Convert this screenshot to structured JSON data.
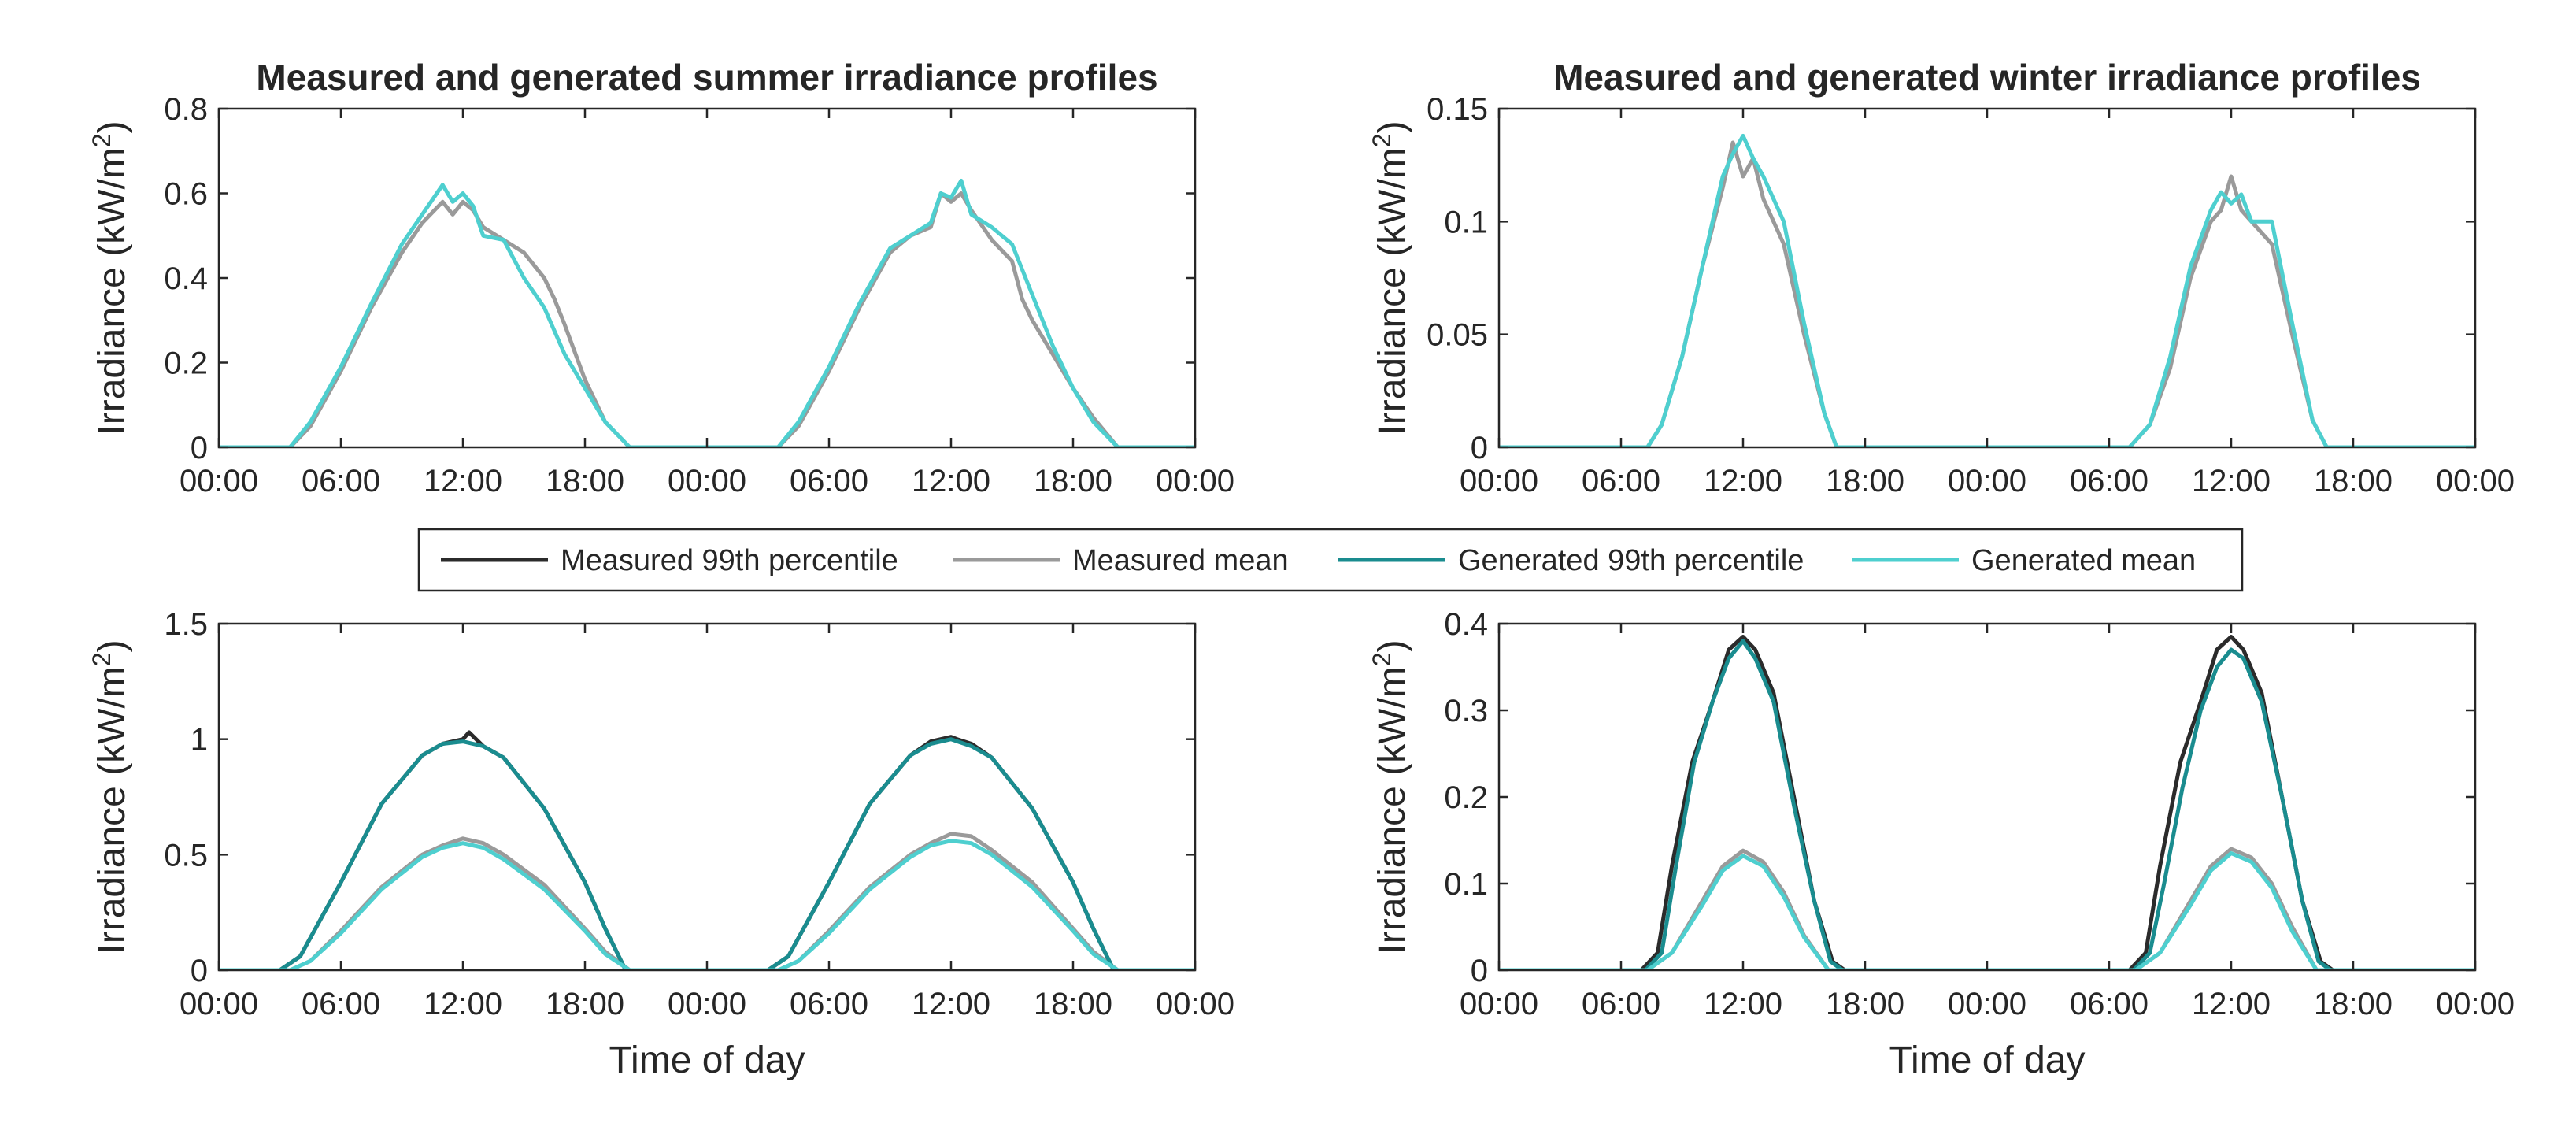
{
  "colors": {
    "measured_p99": "#2b2b2b",
    "measured_mean": "#9a9a9a",
    "generated_p99": "#1a8c8f",
    "generated_mean": "#4ecfcf"
  },
  "legend": {
    "entries": [
      {
        "label": "Measured 99th percentile",
        "color": "#2b2b2b"
      },
      {
        "label": "Measured mean",
        "color": "#9a9a9a"
      },
      {
        "label": "Generated 99th percentile",
        "color": "#1a8c8f"
      },
      {
        "label": "Generated mean",
        "color": "#4ecfcf"
      }
    ]
  },
  "chart_data": [
    {
      "id": "summer-mean",
      "type": "line",
      "title": "Measured and generated summer irradiance profiles",
      "xlabel": "",
      "ylabel": "Irradiance (kW/m²)",
      "ylim": [
        0,
        0.8
      ],
      "yticks": [
        0,
        0.2,
        0.4,
        0.6,
        0.8
      ],
      "ytick_labels": [
        "0",
        "0.2",
        "0.4",
        "0.6",
        "0.8"
      ],
      "xlim": [
        0,
        48
      ],
      "xticks": [
        0,
        6,
        12,
        18,
        24,
        30,
        36,
        42,
        48
      ],
      "xtick_labels": [
        "00:00",
        "06:00",
        "12:00",
        "18:00",
        "00:00",
        "06:00",
        "12:00",
        "18:00",
        "00:00"
      ],
      "series": [
        {
          "name": "Measured mean",
          "color_key": "measured_mean",
          "x": [
            0,
            3.5,
            4.5,
            6,
            7.5,
            9,
            10,
            11,
            11.5,
            12,
            12.5,
            13,
            14,
            15,
            16,
            16.5,
            17,
            18,
            19,
            20.2,
            24,
            27.5,
            28.5,
            30,
            31.5,
            33,
            34,
            35,
            35.5,
            36,
            36.5,
            37,
            38,
            39,
            39.5,
            40,
            41,
            42,
            43,
            44.2,
            48
          ],
          "y": [
            0,
            0,
            0.05,
            0.18,
            0.33,
            0.46,
            0.53,
            0.58,
            0.55,
            0.58,
            0.56,
            0.52,
            0.49,
            0.46,
            0.4,
            0.35,
            0.29,
            0.16,
            0.06,
            0,
            0,
            0,
            0.05,
            0.18,
            0.33,
            0.46,
            0.5,
            0.52,
            0.6,
            0.58,
            0.6,
            0.56,
            0.49,
            0.44,
            0.35,
            0.3,
            0.22,
            0.14,
            0.07,
            0,
            0
          ]
        },
        {
          "name": "Generated mean",
          "color_key": "generated_mean",
          "x": [
            0,
            3.5,
            4.5,
            6,
            7.5,
            9,
            10,
            11,
            11.5,
            12,
            12.5,
            13,
            14,
            15,
            16,
            17,
            18,
            19,
            20.2,
            24,
            27.5,
            28.5,
            30,
            31.5,
            33,
            34,
            35,
            35.5,
            36,
            36.5,
            37,
            38,
            39,
            40,
            41,
            42,
            43,
            44.2,
            48
          ],
          "y": [
            0,
            0,
            0.06,
            0.19,
            0.34,
            0.48,
            0.55,
            0.62,
            0.58,
            0.6,
            0.57,
            0.5,
            0.49,
            0.4,
            0.33,
            0.22,
            0.14,
            0.06,
            0,
            0,
            0,
            0.06,
            0.19,
            0.34,
            0.47,
            0.5,
            0.53,
            0.6,
            0.59,
            0.63,
            0.55,
            0.52,
            0.48,
            0.36,
            0.24,
            0.14,
            0.06,
            0,
            0
          ]
        }
      ]
    },
    {
      "id": "winter-mean",
      "type": "line",
      "title": "Measured and generated winter irradiance profiles",
      "xlabel": "",
      "ylabel": "Irradiance (kW/m²)",
      "ylim": [
        0,
        0.15
      ],
      "yticks": [
        0,
        0.05,
        0.1,
        0.15
      ],
      "ytick_labels": [
        "0",
        "0.05",
        "0.1",
        "0.15"
      ],
      "xlim": [
        0,
        48
      ],
      "xticks": [
        0,
        6,
        12,
        18,
        24,
        30,
        36,
        42,
        48
      ],
      "xtick_labels": [
        "00:00",
        "06:00",
        "12:00",
        "18:00",
        "00:00",
        "06:00",
        "12:00",
        "18:00",
        "00:00"
      ],
      "series": [
        {
          "name": "Measured mean",
          "color_key": "measured_mean",
          "x": [
            0,
            7.3,
            8,
            9,
            10,
            11,
            11.5,
            12,
            12.5,
            13,
            14,
            15,
            16,
            16.6,
            24,
            31,
            32,
            33,
            34,
            35,
            35.5,
            36,
            36.5,
            37,
            38,
            39,
            40,
            40.7,
            48
          ],
          "y": [
            0,
            0,
            0.01,
            0.04,
            0.08,
            0.115,
            0.135,
            0.12,
            0.128,
            0.11,
            0.09,
            0.05,
            0.015,
            0,
            0,
            0,
            0.01,
            0.035,
            0.075,
            0.1,
            0.105,
            0.12,
            0.105,
            0.1,
            0.09,
            0.05,
            0.012,
            0,
            0
          ]
        },
        {
          "name": "Generated mean",
          "color_key": "generated_mean",
          "x": [
            0,
            7.3,
            8,
            9,
            10,
            11,
            11.5,
            12,
            12.5,
            13,
            14,
            15,
            16,
            16.6,
            24,
            31,
            32,
            33,
            34,
            35,
            35.5,
            36,
            36.5,
            37,
            38,
            39,
            40,
            40.7,
            48
          ],
          "y": [
            0,
            0,
            0.01,
            0.04,
            0.08,
            0.12,
            0.13,
            0.138,
            0.128,
            0.12,
            0.1,
            0.055,
            0.015,
            0,
            0,
            0,
            0.01,
            0.04,
            0.08,
            0.105,
            0.113,
            0.108,
            0.112,
            0.1,
            0.1,
            0.055,
            0.012,
            0,
            0
          ]
        }
      ]
    },
    {
      "id": "summer-p99",
      "type": "line",
      "title": "",
      "xlabel": "Time of day",
      "ylabel": "Irradiance (kW/m²)",
      "ylim": [
        0,
        1.5
      ],
      "yticks": [
        0,
        0.5,
        1,
        1.5
      ],
      "ytick_labels": [
        "0",
        "0.5",
        "1",
        "1.5"
      ],
      "xlim": [
        0,
        48
      ],
      "xticks": [
        0,
        6,
        12,
        18,
        24,
        30,
        36,
        42,
        48
      ],
      "xtick_labels": [
        "00:00",
        "06:00",
        "12:00",
        "18:00",
        "00:00",
        "06:00",
        "12:00",
        "18:00",
        "00:00"
      ],
      "series": [
        {
          "name": "Measured 99th percentile",
          "color_key": "measured_p99",
          "x": [
            0,
            3,
            4,
            6,
            8,
            10,
            11,
            12,
            12.3,
            13,
            14,
            16,
            18,
            19,
            20,
            24,
            27,
            28,
            30,
            32,
            34,
            35,
            36,
            36.3,
            37,
            38,
            40,
            42,
            43,
            44,
            48
          ],
          "y": [
            0,
            0,
            0.06,
            0.38,
            0.72,
            0.93,
            0.98,
            1.0,
            1.03,
            0.97,
            0.92,
            0.7,
            0.38,
            0.18,
            0,
            0,
            0,
            0.06,
            0.38,
            0.72,
            0.93,
            0.99,
            1.01,
            1.0,
            0.98,
            0.92,
            0.7,
            0.38,
            0.18,
            0,
            0
          ]
        },
        {
          "name": "Measured mean",
          "color_key": "measured_mean",
          "x": [
            0,
            3.5,
            4.5,
            6,
            8,
            10,
            11,
            12,
            13,
            14,
            16,
            18,
            19,
            20.2,
            24,
            27.5,
            28.5,
            30,
            32,
            34,
            35,
            36,
            37,
            38,
            40,
            42,
            43,
            44.2,
            48
          ],
          "y": [
            0,
            0,
            0.04,
            0.17,
            0.36,
            0.5,
            0.54,
            0.57,
            0.55,
            0.5,
            0.37,
            0.18,
            0.08,
            0,
            0,
            0,
            0.04,
            0.17,
            0.36,
            0.5,
            0.55,
            0.59,
            0.58,
            0.52,
            0.38,
            0.18,
            0.08,
            0,
            0
          ]
        },
        {
          "name": "Generated 99th percentile",
          "color_key": "generated_p99",
          "x": [
            0,
            3,
            4,
            6,
            8,
            10,
            11,
            12,
            13,
            14,
            16,
            18,
            19,
            20,
            24,
            27,
            28,
            30,
            32,
            34,
            35,
            36,
            37,
            38,
            40,
            42,
            43,
            44,
            48
          ],
          "y": [
            0,
            0,
            0.06,
            0.38,
            0.72,
            0.93,
            0.98,
            0.99,
            0.97,
            0.92,
            0.7,
            0.38,
            0.18,
            0,
            0,
            0,
            0.06,
            0.38,
            0.72,
            0.93,
            0.98,
            1.0,
            0.97,
            0.92,
            0.7,
            0.38,
            0.18,
            0,
            0
          ]
        },
        {
          "name": "Generated mean",
          "color_key": "generated_mean",
          "x": [
            0,
            3.5,
            4.5,
            6,
            8,
            10,
            11,
            12,
            13,
            14,
            16,
            18,
            19,
            20.2,
            24,
            27.5,
            28.5,
            30,
            32,
            34,
            35,
            36,
            37,
            38,
            40,
            42,
            43,
            44.2,
            48
          ],
          "y": [
            0,
            0,
            0.04,
            0.16,
            0.35,
            0.49,
            0.53,
            0.55,
            0.53,
            0.48,
            0.35,
            0.17,
            0.07,
            0,
            0,
            0,
            0.04,
            0.16,
            0.35,
            0.49,
            0.54,
            0.56,
            0.55,
            0.5,
            0.36,
            0.17,
            0.07,
            0,
            0
          ]
        }
      ]
    },
    {
      "id": "winter-p99",
      "type": "line",
      "title": "",
      "xlabel": "Time of day",
      "ylabel": "Irradiance (kW/m²)",
      "ylim": [
        0,
        0.4
      ],
      "yticks": [
        0,
        0.1,
        0.2,
        0.3,
        0.4
      ],
      "ytick_labels": [
        "0",
        "0.1",
        "0.2",
        "0.3",
        "0.4"
      ],
      "xlim": [
        0,
        48
      ],
      "xticks": [
        0,
        6,
        12,
        18,
        24,
        30,
        36,
        42,
        48
      ],
      "xtick_labels": [
        "00:00",
        "06:00",
        "12:00",
        "18:00",
        "00:00",
        "06:00",
        "12:00",
        "18:00",
        "00:00"
      ],
      "series": [
        {
          "name": "Measured 99th percentile",
          "color_key": "measured_p99",
          "x": [
            0,
            7,
            7.8,
            8.5,
            9.5,
            10.5,
            11.3,
            12,
            12.6,
            13.5,
            14.5,
            15.5,
            16.4,
            17,
            24,
            31,
            31.8,
            32.5,
            33.5,
            34.5,
            35.3,
            36,
            36.6,
            37.5,
            38.5,
            39.5,
            40.4,
            41,
            48
          ],
          "y": [
            0,
            0,
            0.02,
            0.12,
            0.24,
            0.31,
            0.37,
            0.385,
            0.37,
            0.32,
            0.2,
            0.08,
            0.01,
            0,
            0,
            0,
            0.02,
            0.12,
            0.24,
            0.31,
            0.37,
            0.385,
            0.37,
            0.32,
            0.2,
            0.08,
            0.01,
            0,
            0
          ]
        },
        {
          "name": "Measured mean",
          "color_key": "measured_mean",
          "x": [
            0,
            7.3,
            8.5,
            10,
            11,
            12,
            13,
            14,
            15,
            16.2,
            24,
            31.3,
            32.5,
            34,
            35,
            36,
            37,
            38,
            39,
            40.2,
            48
          ],
          "y": [
            0,
            0,
            0.02,
            0.08,
            0.12,
            0.138,
            0.125,
            0.09,
            0.04,
            0,
            0,
            0,
            0.02,
            0.08,
            0.12,
            0.14,
            0.13,
            0.1,
            0.05,
            0,
            0
          ]
        },
        {
          "name": "Generated 99th percentile",
          "color_key": "generated_p99",
          "x": [
            0,
            7.2,
            8,
            8.7,
            9.6,
            10.5,
            11.3,
            12,
            12.6,
            13.5,
            14.5,
            15.5,
            16.3,
            16.9,
            24,
            31.2,
            32,
            32.7,
            33.6,
            34.5,
            35.3,
            36,
            36.6,
            37.5,
            38.5,
            39.5,
            40.3,
            40.9,
            48
          ],
          "y": [
            0,
            0,
            0.02,
            0.12,
            0.24,
            0.31,
            0.36,
            0.38,
            0.36,
            0.31,
            0.19,
            0.08,
            0.01,
            0,
            0,
            0,
            0.02,
            0.1,
            0.21,
            0.3,
            0.35,
            0.37,
            0.36,
            0.31,
            0.2,
            0.08,
            0.01,
            0,
            0
          ]
        },
        {
          "name": "Generated mean",
          "color_key": "generated_mean",
          "x": [
            0,
            7.3,
            8.5,
            10,
            11,
            12,
            13,
            14,
            15,
            16.2,
            24,
            31.3,
            32.5,
            34,
            35,
            36,
            37,
            38,
            39,
            40.2,
            48
          ],
          "y": [
            0,
            0,
            0.02,
            0.075,
            0.115,
            0.132,
            0.12,
            0.085,
            0.038,
            0,
            0,
            0,
            0.02,
            0.075,
            0.115,
            0.135,
            0.125,
            0.095,
            0.045,
            0,
            0
          ]
        }
      ]
    }
  ]
}
